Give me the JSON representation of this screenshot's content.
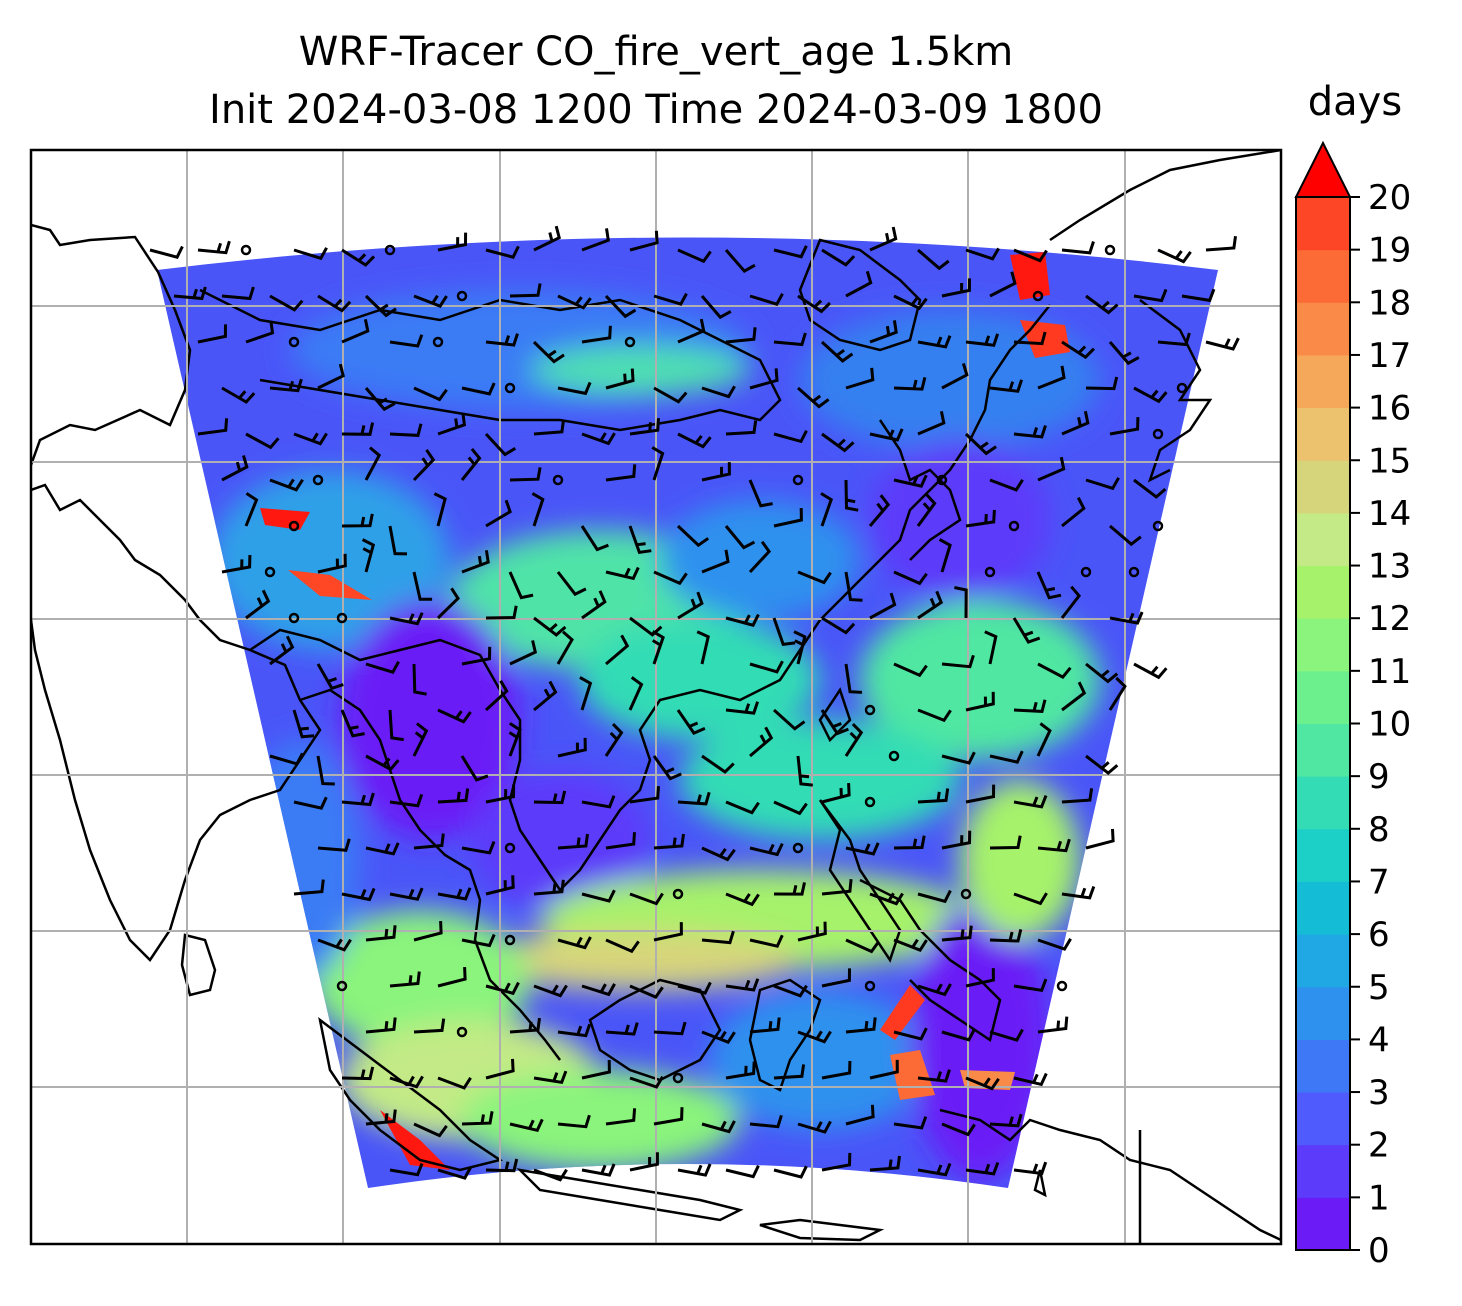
{
  "title": {
    "line1": "WRF-Tracer CO_fire_vert_age 1.5km",
    "line2": "Init 2024-03-08 1200 Time 2024-03-09 1800"
  },
  "colorbar": {
    "units": "days",
    "ticks": [
      "0",
      "1",
      "2",
      "3",
      "4",
      "5",
      "6",
      "7",
      "8",
      "9",
      "10",
      "11",
      "12",
      "13",
      "14",
      "15",
      "16",
      "17",
      "18",
      "19",
      "20"
    ],
    "extend": "max",
    "colors": [
      "#6a1bf6",
      "#5d3bfa",
      "#4f5bfc",
      "#3f78f7",
      "#2f91ee",
      "#1fa8e3",
      "#14bcd6",
      "#1ccfc7",
      "#33dcb5",
      "#4fe7a2",
      "#6cf08e",
      "#8af47c",
      "#a6f26b",
      "#c3ea86",
      "#d7d57b",
      "#ecc26e",
      "#f6a85a",
      "#fa8a47",
      "#fc6a36",
      "#fd4625",
      "#ff1810"
    ],
    "extend_color": "#ff0000"
  },
  "map": {
    "grid": "on",
    "gridline_color": "#b0b0b0",
    "coastline_color": "#000000",
    "wind_barbs": "on"
  }
}
